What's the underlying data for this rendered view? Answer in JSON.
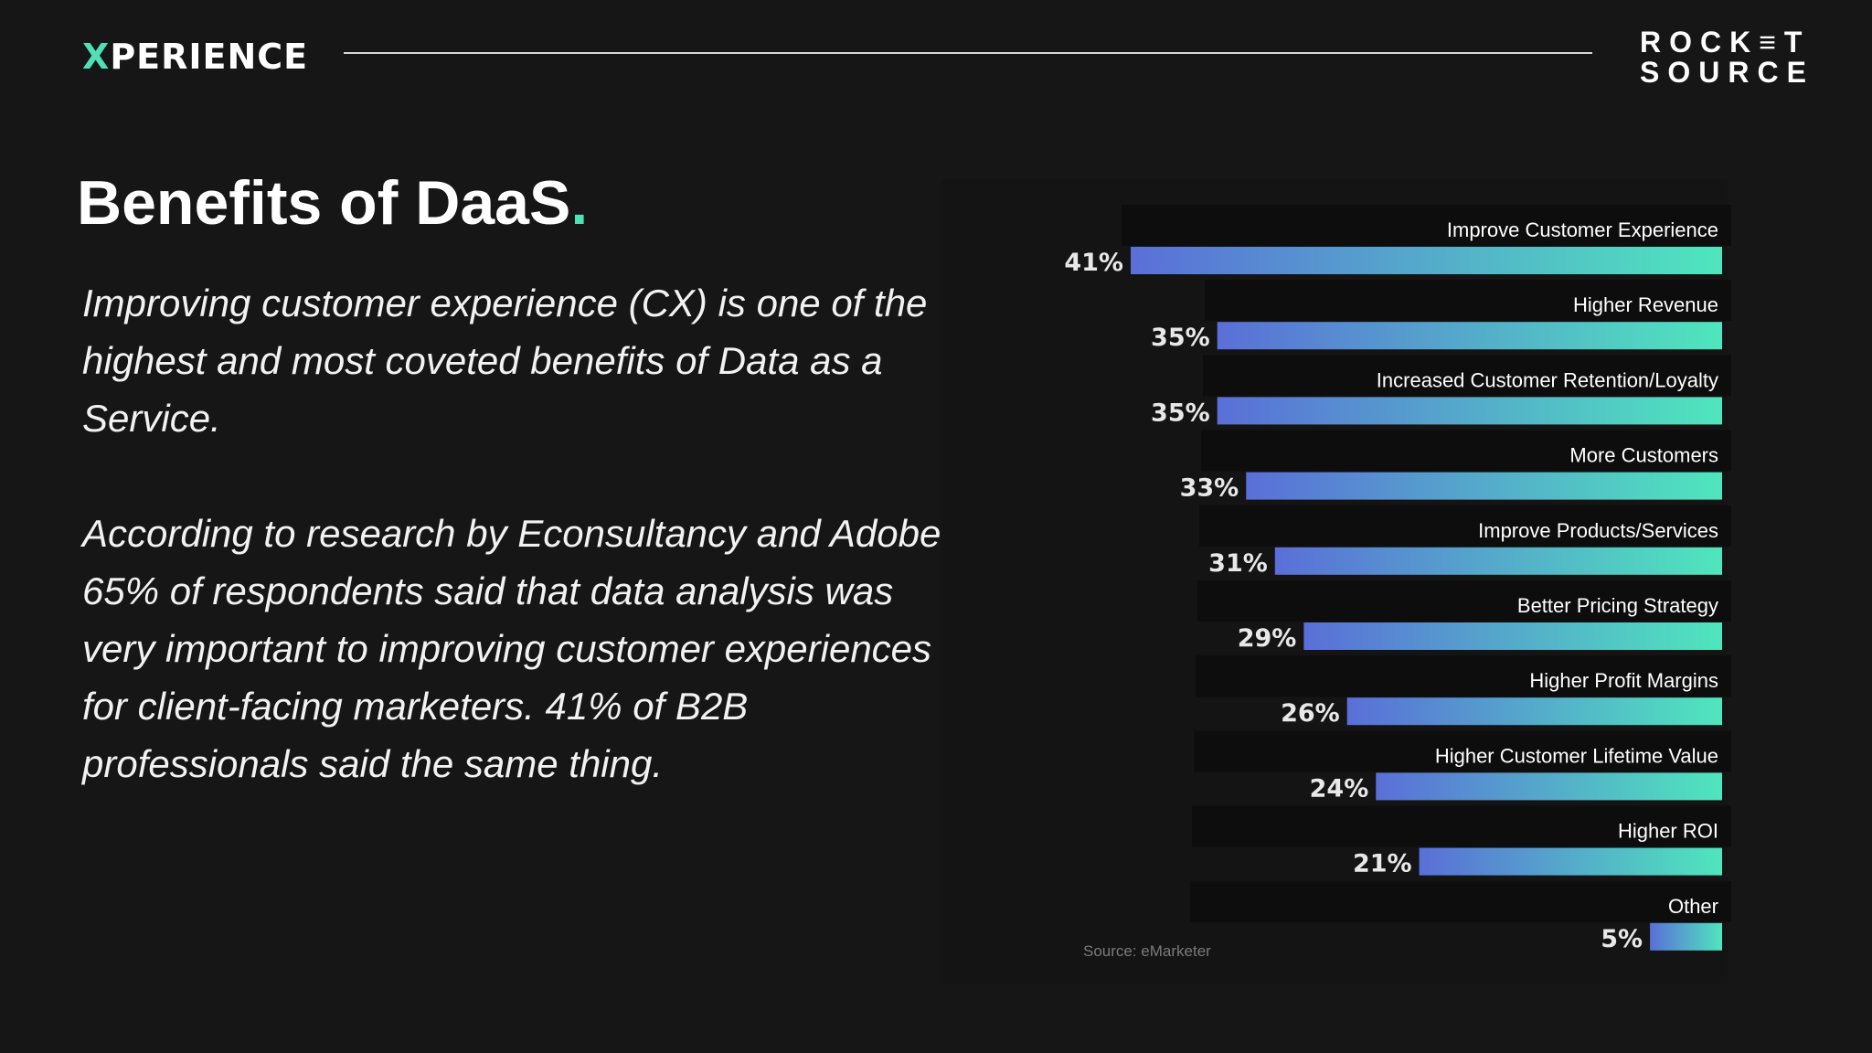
{
  "header": {
    "brand_mark": "X",
    "brand_rest": "PERIENCE",
    "partner_line1": "ROCK≡T",
    "partner_line2": "SOURCE"
  },
  "slide": {
    "title": "Benefits of DaaS",
    "title_dot": ".",
    "paragraph1": "Improving customer experience (CX) is one of the highest and most coveted benefits of Data as a Service.",
    "paragraph2": "According to research by Econsultancy and Adobe, 65% of respondents said that data analysis was very important to improving customer experiences for client-facing marketers. 41% of B2B professionals said the same thing.",
    "source": "Source: eMarketer"
  },
  "colors": {
    "accent": "#4fe0b8",
    "bar_gradient_start": "#5a6fd8",
    "bar_gradient_end": "#4fe6bd",
    "background": "#161616"
  },
  "chart_data": {
    "type": "bar",
    "orientation": "horizontal",
    "categories": [
      "Improve Customer Experience",
      "Higher Revenue",
      "Increased Customer Retention/Loyalty",
      "More Customers",
      "Improve Products/Services",
      "Better Pricing Strategy",
      "Higher Profit Margins",
      "Higher Customer Lifetime Value",
      "Higher ROI",
      "Other"
    ],
    "values": [
      41,
      35,
      35,
      33,
      31,
      29,
      26,
      24,
      21,
      5
    ],
    "value_labels": [
      "41%",
      "35%",
      "35%",
      "33%",
      "31%",
      "29%",
      "26%",
      "24%",
      "21%",
      "5%"
    ],
    "unit": "%",
    "xlim": [
      0,
      41
    ],
    "grid": false,
    "legend": "none"
  }
}
